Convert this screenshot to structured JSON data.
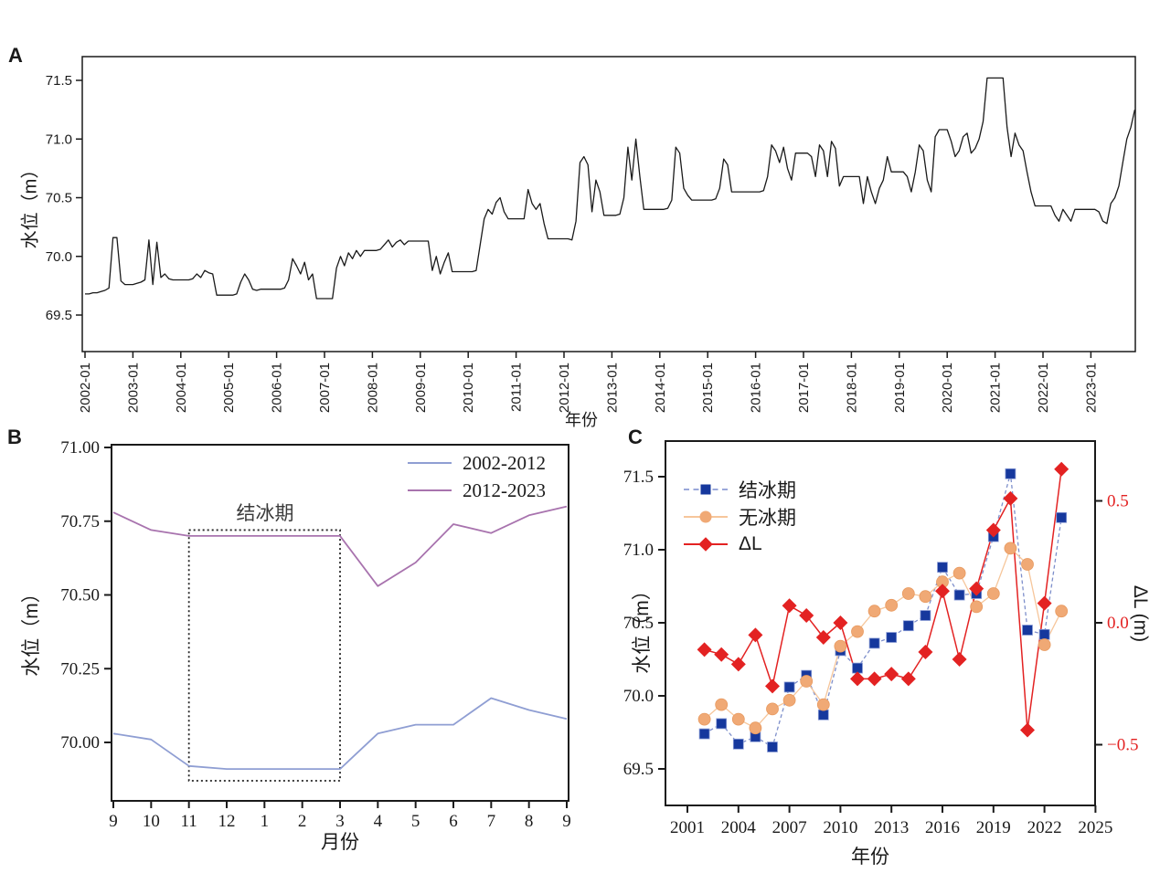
{
  "page": {
    "background": "#ffffff"
  },
  "chart_data": [
    {
      "panel_label": "A",
      "type": "line",
      "title": "",
      "xlabel": "年份",
      "ylabel": "水位（m）",
      "line_color": "#1a1a1a",
      "ylim": [
        69.19,
        71.7
      ],
      "ytick_values": [
        69.5,
        70.0,
        70.5,
        71.0,
        71.5
      ],
      "ytick_labels": [
        "69.5",
        "70.0",
        "70.5",
        "71.0",
        "71.5"
      ],
      "x_start": "2002-01",
      "x_step": "month",
      "xtick_labels": [
        "2002-01",
        "2003-01",
        "2004-01",
        "2005-01",
        "2006-01",
        "2007-01",
        "2008-01",
        "2009-01",
        "2010-01",
        "2011-01",
        "2012-01",
        "2013-01",
        "2014-01",
        "2015-01",
        "2016-01",
        "2017-01",
        "2018-01",
        "2019-01",
        "2020-01",
        "2021-01",
        "2022-01",
        "2023-01"
      ],
      "values": [
        69.68,
        69.68,
        69.69,
        69.69,
        69.7,
        69.71,
        69.73,
        70.16,
        70.16,
        69.79,
        69.76,
        69.76,
        69.76,
        69.77,
        69.78,
        69.8,
        70.14,
        69.76,
        70.12,
        69.82,
        69.85,
        69.81,
        69.8,
        69.8,
        69.8,
        69.8,
        69.8,
        69.81,
        69.85,
        69.82,
        69.88,
        69.86,
        69.85,
        69.67,
        69.67,
        69.67,
        69.67,
        69.67,
        69.68,
        69.78,
        69.85,
        69.8,
        69.72,
        69.71,
        69.72,
        69.72,
        69.72,
        69.72,
        69.72,
        69.72,
        69.73,
        69.8,
        69.98,
        69.92,
        69.85,
        69.95,
        69.8,
        69.85,
        69.64,
        69.64,
        69.64,
        69.64,
        69.64,
        69.9,
        70.0,
        69.92,
        70.03,
        69.98,
        70.05,
        70.0,
        70.05,
        70.05,
        70.05,
        70.05,
        70.06,
        70.1,
        70.14,
        70.08,
        70.12,
        70.14,
        70.1,
        70.13,
        70.13,
        70.13,
        70.13,
        70.13,
        70.13,
        69.88,
        70.0,
        69.85,
        69.95,
        70.03,
        69.87,
        69.87,
        69.87,
        69.87,
        69.87,
        69.87,
        69.88,
        70.1,
        70.32,
        70.4,
        70.36,
        70.46,
        70.5,
        70.38,
        70.32,
        70.32,
        70.32,
        70.32,
        70.32,
        70.57,
        70.45,
        70.4,
        70.45,
        70.28,
        70.15,
        70.15,
        70.15,
        70.15,
        70.15,
        70.15,
        70.14,
        70.3,
        70.8,
        70.85,
        70.78,
        70.38,
        70.65,
        70.55,
        70.35,
        70.35,
        70.35,
        70.35,
        70.36,
        70.5,
        70.93,
        70.65,
        71.0,
        70.68,
        70.4,
        70.4,
        70.4,
        70.4,
        70.4,
        70.4,
        70.41,
        70.48,
        70.93,
        70.88,
        70.58,
        70.52,
        70.48,
        70.48,
        70.48,
        70.48,
        70.48,
        70.48,
        70.49,
        70.58,
        70.83,
        70.78,
        70.55,
        70.55,
        70.55,
        70.55,
        70.55,
        70.55,
        70.55,
        70.55,
        70.56,
        70.68,
        70.95,
        70.9,
        70.8,
        70.93,
        70.75,
        70.65,
        70.88,
        70.88,
        70.88,
        70.88,
        70.85,
        70.68,
        70.95,
        70.9,
        70.68,
        70.98,
        70.92,
        70.6,
        70.68,
        70.68,
        70.68,
        70.68,
        70.68,
        70.45,
        70.68,
        70.55,
        70.45,
        70.58,
        70.65,
        70.85,
        70.72,
        70.72,
        70.72,
        70.72,
        70.68,
        70.55,
        70.72,
        70.95,
        70.9,
        70.65,
        70.55,
        71.02,
        71.08,
        71.08,
        71.08,
        70.98,
        70.85,
        70.9,
        71.02,
        71.05,
        70.88,
        70.92,
        71.0,
        71.15,
        71.52,
        71.52,
        71.52,
        71.52,
        71.52,
        71.1,
        70.85,
        71.05,
        70.95,
        70.9,
        70.72,
        70.55,
        70.43,
        70.43,
        70.43,
        70.43,
        70.43,
        70.35,
        70.3,
        70.4,
        70.35,
        70.3,
        70.4,
        70.4,
        70.4,
        70.4,
        70.4,
        70.4,
        70.38,
        70.3,
        70.28,
        70.45,
        70.5,
        70.6,
        70.8,
        71.0,
        71.1,
        71.25
      ]
    },
    {
      "panel_label": "B",
      "type": "line",
      "title": "",
      "xlabel": "月份",
      "ylabel": "水位（m）",
      "categories": [
        "9",
        "10",
        "11",
        "12",
        "1",
        "2",
        "3",
        "4",
        "5",
        "6",
        "7",
        "8",
        "9"
      ],
      "ylim": [
        69.8,
        71.01
      ],
      "ytick_values": [
        71.0,
        70.75,
        70.5,
        70.25,
        70.0
      ],
      "ytick_labels": [
        "71.00",
        "70.75",
        "70.50",
        "70.25",
        "70.00"
      ],
      "legend_position": "top-right",
      "series": [
        {
          "name": "2002-2012",
          "color": "#8f9ed3",
          "values": [
            70.03,
            70.01,
            69.92,
            69.91,
            69.91,
            69.91,
            69.91,
            70.03,
            70.06,
            70.06,
            70.15,
            70.11,
            70.08
          ]
        },
        {
          "name": "2012-2023",
          "color": "#a873ae",
          "values": [
            70.78,
            70.72,
            70.7,
            70.7,
            70.7,
            70.7,
            70.7,
            70.53,
            70.61,
            70.74,
            70.71,
            70.77,
            70.8
          ]
        }
      ],
      "annotation": {
        "label": "结冰期",
        "x_start_index": 2,
        "x_end_index": 6,
        "y_top": 70.72,
        "y_bottom": 69.87
      }
    },
    {
      "panel_label": "C",
      "type": "scatter",
      "title": "",
      "xlabel": "年份",
      "ylabel_left": "水位（m）",
      "ylabel_right": "ΔL (m)",
      "x": [
        2002,
        2003,
        2004,
        2005,
        2006,
        2007,
        2008,
        2009,
        2010,
        2011,
        2012,
        2013,
        2014,
        2015,
        2016,
        2017,
        2018,
        2019,
        2020,
        2021,
        2022,
        2023
      ],
      "xtick_values": [
        2001,
        2004,
        2007,
        2010,
        2013,
        2016,
        2019,
        2022,
        2025
      ],
      "xtick_labels": [
        "2001",
        "2004",
        "2007",
        "2010",
        "2013",
        "2016",
        "2019",
        "2022",
        "2025"
      ],
      "xlim": [
        1999.7,
        2025
      ],
      "ylim_left": [
        69.25,
        71.74
      ],
      "ytick_values_left": [
        71.5,
        71.0,
        70.5,
        70.0,
        69.5
      ],
      "ytick_labels_left": [
        "71.5",
        "71.0",
        "70.5",
        "70.0",
        "69.5"
      ],
      "ylim_right": [
        -0.75,
        0.74
      ],
      "ytick_values_right": [
        0.5,
        0.0,
        -0.5
      ],
      "ytick_labels_right": [
        "0.5",
        "0.0",
        "−0.5"
      ],
      "right_axis_color": "#e32222",
      "legend_position": "top-left",
      "series": [
        {
          "name": "结冰期",
          "axis": "left",
          "marker": "square",
          "marker_color": "#16389d",
          "line_color": "#7e8fcb",
          "line_style": "dashed",
          "values": [
            69.74,
            69.81,
            69.67,
            69.72,
            69.65,
            70.06,
            70.14,
            69.87,
            70.31,
            70.19,
            70.36,
            70.4,
            70.48,
            70.55,
            70.88,
            70.69,
            70.7,
            71.09,
            71.52,
            70.45,
            70.42,
            71.22
          ]
        },
        {
          "name": "无冰期",
          "axis": "left",
          "marker": "circle",
          "marker_color": "#f0a975",
          "line_color": "#f6c69b",
          "line_style": "solid",
          "values": [
            69.84,
            69.94,
            69.84,
            69.78,
            69.91,
            69.97,
            70.1,
            69.94,
            70.34,
            70.44,
            70.58,
            70.62,
            70.7,
            70.68,
            70.78,
            70.84,
            70.61,
            70.7,
            71.01,
            70.9,
            70.35,
            70.58
          ]
        },
        {
          "name": "ΔL",
          "axis": "right",
          "marker": "diamond",
          "marker_color": "#e32222",
          "line_color": "#e32222",
          "line_style": "solid",
          "values": [
            -0.11,
            -0.13,
            -0.17,
            -0.05,
            -0.26,
            0.07,
            0.03,
            -0.06,
            0.0,
            -0.23,
            -0.23,
            -0.21,
            -0.23,
            -0.12,
            0.13,
            -0.15,
            0.14,
            0.38,
            0.51,
            -0.44,
            0.08,
            0.63
          ]
        }
      ]
    }
  ]
}
